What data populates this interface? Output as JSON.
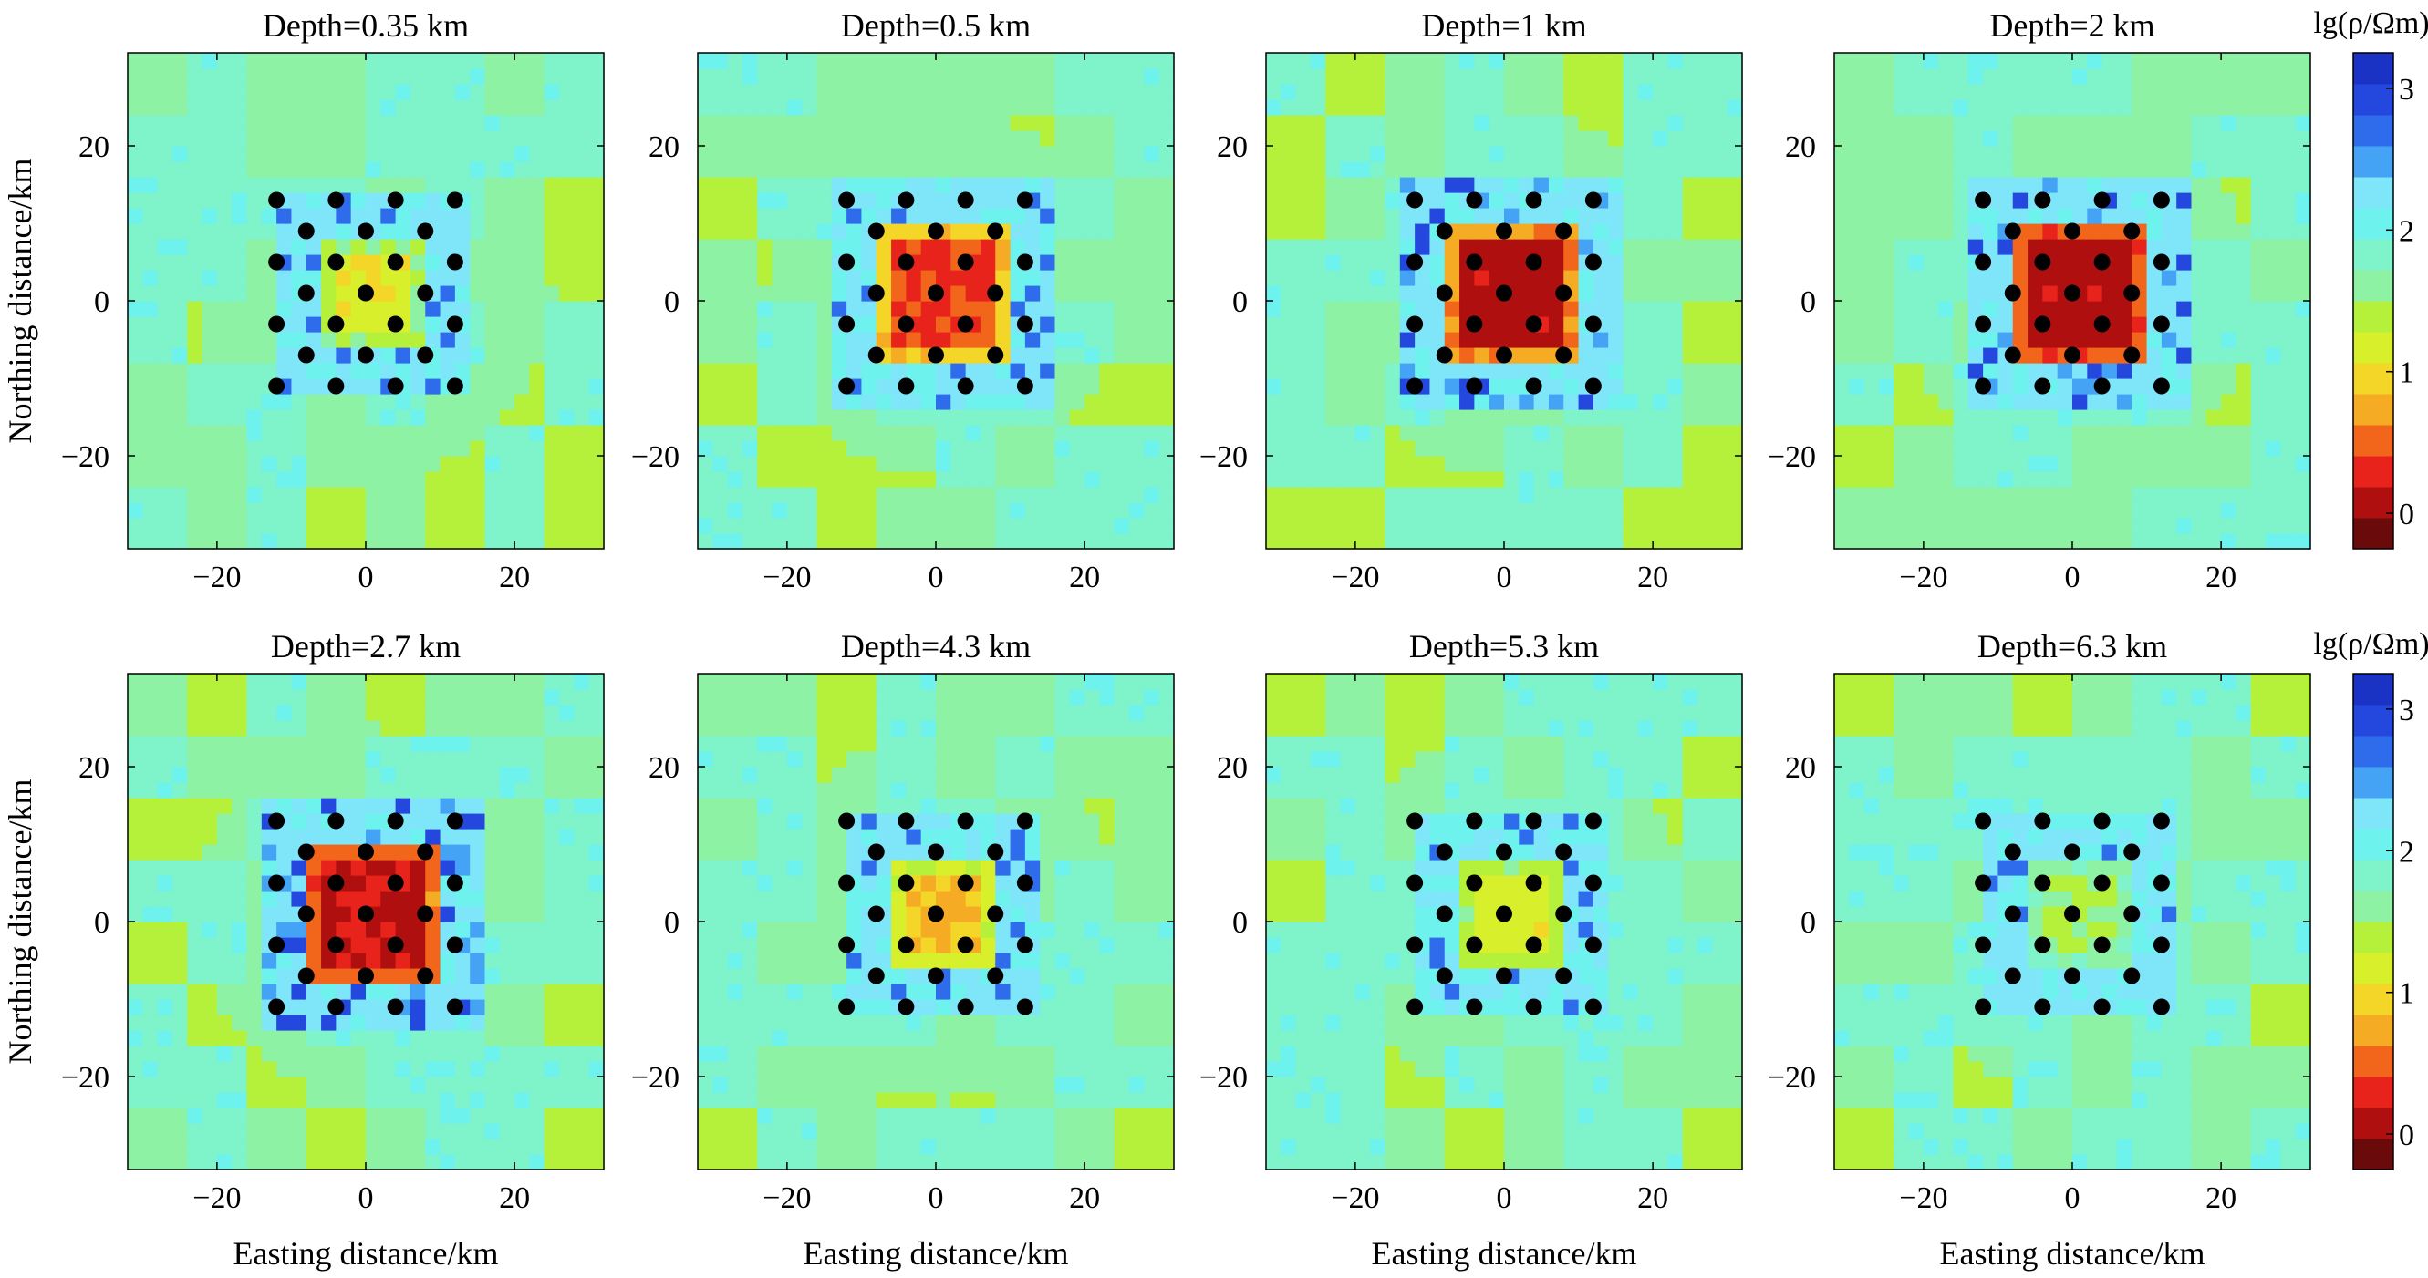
{
  "chart_data": {
    "type": "heatmap",
    "layout": "2x4 panels with colorbar per row",
    "xlabel": "Easting distance/km",
    "ylabel": "Northing distance/km",
    "xlim": [
      -32,
      32
    ],
    "ylim": [
      -32,
      32
    ],
    "xticks": [
      -20,
      0,
      20
    ],
    "yticks": [
      20,
      0,
      -20
    ],
    "grid": false,
    "colorbar": {
      "label": "lg(ρ/Ωm)",
      "range": [
        -0.25,
        3.25
      ],
      "ticks": [
        0,
        1,
        2,
        3
      ],
      "colors": [
        "#6a0a0a",
        "#b00f0f",
        "#e8231c",
        "#f2661c",
        "#f5ab24",
        "#f3d628",
        "#d8ef2c",
        "#b5f03a",
        "#8ef2a4",
        "#7ff3c9",
        "#6ef2ee",
        "#7ee6f8",
        "#45a3f5",
        "#2f6cec",
        "#2448de",
        "#1b33c4"
      ]
    },
    "stations": {
      "spacing_km": 4,
      "points": [
        [
          -12,
          13
        ],
        [
          -4,
          13
        ],
        [
          4,
          13
        ],
        [
          12,
          13
        ],
        [
          -8,
          9
        ],
        [
          0,
          9
        ],
        [
          8,
          9
        ],
        [
          -12,
          5
        ],
        [
          -4,
          5
        ],
        [
          4,
          5
        ],
        [
          12,
          5
        ],
        [
          -8,
          1
        ],
        [
          0,
          1
        ],
        [
          8,
          1
        ],
        [
          -12,
          -3
        ],
        [
          -4,
          -3
        ],
        [
          4,
          -3
        ],
        [
          12,
          -3
        ],
        [
          -8,
          -7
        ],
        [
          0,
          -7
        ],
        [
          8,
          -7
        ],
        [
          -12,
          -11
        ],
        [
          -4,
          -11
        ],
        [
          4,
          -11
        ],
        [
          12,
          -11
        ]
      ]
    },
    "panels": [
      {
        "title": "Depth=0.35 km",
        "center_value": 1.0,
        "edge_value": 1.35,
        "halo_value": 2.05
      },
      {
        "title": "Depth=0.5 km",
        "center_value": 0.3,
        "edge_value": 0.8,
        "halo_value": 2.05
      },
      {
        "title": "Depth=1 km",
        "center_value": 0.0,
        "edge_value": 0.55,
        "halo_value": 2.1
      },
      {
        "title": "Depth=2 km",
        "center_value": 0.0,
        "edge_value": 0.35,
        "halo_value": 2.1
      },
      {
        "title": "Depth=2.7 km",
        "center_value": 0.05,
        "edge_value": 0.4,
        "halo_value": 2.1
      },
      {
        "title": "Depth=4.3 km",
        "center_value": 0.75,
        "edge_value": 1.1,
        "halo_value": 2.05
      },
      {
        "title": "Depth=5.3 km",
        "center_value": 1.05,
        "edge_value": 1.3,
        "halo_value": 2.0
      },
      {
        "title": "Depth=6.3 km",
        "center_value": 1.4,
        "edge_value": 1.55,
        "halo_value": 2.0
      }
    ]
  }
}
